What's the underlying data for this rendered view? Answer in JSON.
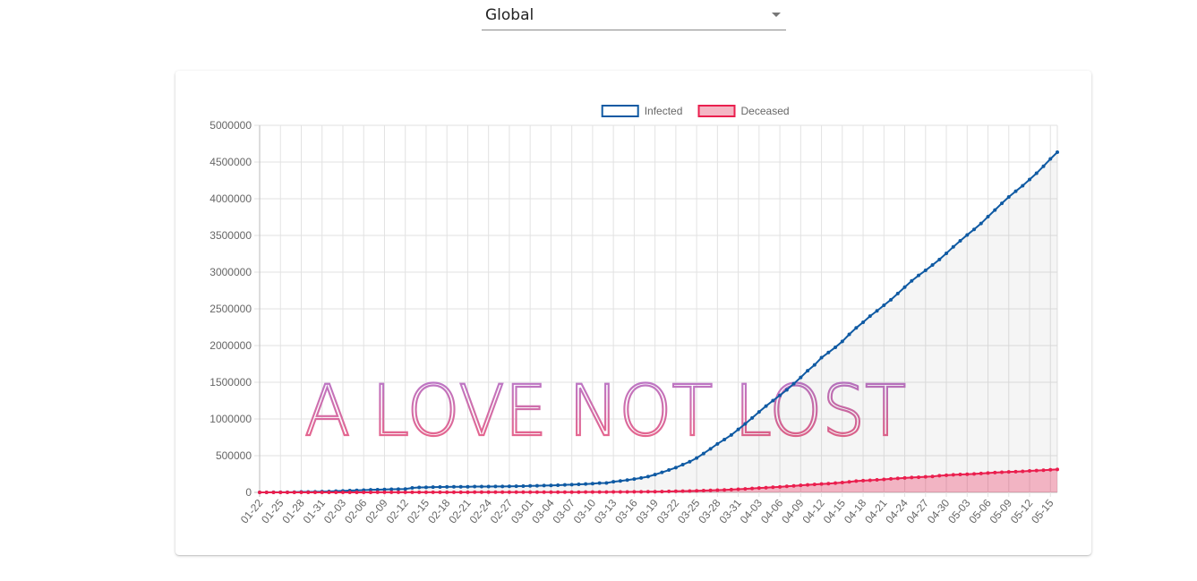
{
  "selector": {
    "value": "Global"
  },
  "chart_data": {
    "type": "line",
    "watermark": "A LOVE NOT LOST",
    "categories": [
      "01-22",
      null,
      null,
      "01-25",
      null,
      null,
      "01-28",
      null,
      null,
      "01-31",
      null,
      null,
      "02-03",
      null,
      null,
      "02-06",
      null,
      null,
      "02-09",
      null,
      null,
      "02-12",
      null,
      null,
      "02-15",
      null,
      null,
      "02-18",
      null,
      null,
      "02-21",
      null,
      null,
      "02-24",
      null,
      null,
      "02-27",
      null,
      null,
      "03-01",
      null,
      null,
      "03-04",
      null,
      null,
      "03-07",
      null,
      null,
      "03-10",
      null,
      null,
      "03-13",
      null,
      null,
      "03-16",
      null,
      null,
      "03-19",
      null,
      null,
      "03-22",
      null,
      null,
      "03-25",
      null,
      null,
      "03-28",
      null,
      null,
      "03-31",
      null,
      null,
      "04-03",
      null,
      null,
      "04-06",
      null,
      null,
      "04-09",
      null,
      null,
      "04-12",
      null,
      null,
      "04-15",
      null,
      null,
      "04-18",
      null,
      null,
      "04-21",
      null,
      null,
      "04-24",
      null,
      null,
      "04-27",
      null,
      null,
      "04-30",
      null,
      null,
      "05-03",
      null,
      null,
      "05-06",
      null,
      null,
      "05-09",
      null,
      null,
      "05-12",
      null,
      null,
      "05-15",
      null
    ],
    "series": [
      {
        "name": "Infected",
        "color": "#0f5aa3",
        "fill": "rgba(0,0,0,0.04)",
        "legend_fill": "#ffffff",
        "values": [
          555,
          654,
          941,
          1434,
          2118,
          2927,
          5578,
          6166,
          8234,
          9927,
          12038,
          16787,
          19881,
          23892,
          27635,
          30794,
          34391,
          37120,
          40150,
          42762,
          44802,
          45221,
          60368,
          66885,
          69030,
          71224,
          73258,
          75136,
          75639,
          76197,
          76819,
          78572,
          78958,
          79561,
          80406,
          81388,
          82746,
          84112,
          86011,
          88369,
          90306,
          92840,
          95120,
          97886,
          101801,
          105847,
          109821,
          113590,
          118620,
          125875,
          128352,
          145205,
          156101,
          167454,
          181574,
          197102,
          214821,
          242570,
          272208,
          304507,
          336953,
          378235,
          418045,
          467653,
          529591,
          593291,
          660706,
          720117,
          782365,
          857487,
          932605,
          1013466,
          1095917,
          1176060,
          1249754,
          1321481,
          1396476,
          1480202,
          1565278,
          1657526,
          1735650,
          1834721,
          1904838,
          1976191,
          2056055,
          2152437,
          2240190,
          2317758,
          2401378,
          2472259,
          2549123,
          2624074,
          2708885,
          2795730,
          2881140,
          2955033,
          3023722,
          3097229,
          3172287,
          3256846,
          3343777,
          3427343,
          3506729,
          3583055,
          3662691,
          3755341,
          3845718,
          3938064,
          4024009,
          4101699,
          4177502,
          4261747,
          4347018,
          4442163,
          4542347,
          4634068
        ]
      },
      {
        "name": "Deceased",
        "color": "#ea1f4e",
        "fill": "rgba(234,31,78,0.3)",
        "legend_fill": "#f4b6c4",
        "values": [
          17,
          18,
          26,
          42,
          56,
          82,
          131,
          133,
          171,
          213,
          259,
          362,
          426,
          492,
          564,
          634,
          719,
          806,
          906,
          1013,
          1113,
          1118,
          1371,
          1523,
          1666,
          1770,
          1868,
          2007,
          2122,
          2247,
          2251,
          2458,
          2469,
          2629,
          2708,
          2770,
          2814,
          2872,
          2941,
          2996,
          3085,
          3160,
          3254,
          3348,
          3460,
          3558,
          3802,
          3988,
          4262,
          4615,
          4720,
          5404,
          5819,
          6440,
          7126,
          7905,
          8733,
          9867,
          11299,
          12973,
          14623,
          16497,
          18615,
          21181,
          23970,
          27198,
          30652,
          33925,
          37582,
          42107,
          46809,
          52983,
          58787,
          64606,
          69374,
          74565,
          81865,
          88338,
          95455,
          102525,
          108502,
          114090,
          119481,
          125983,
          134176,
          143800,
          153821,
          159509,
          165044,
          169985,
          177481,
          184217,
          190858,
          197159,
          202846,
          206544,
          211167,
          217153,
          227638,
          233388,
          238619,
          243813,
          247470,
          251537,
          257239,
          263855,
          269567,
          274898,
          279311,
          282709,
          286330,
          292376,
          297197,
          302418,
          307666,
          311781
        ]
      }
    ],
    "ylim": [
      0,
      5000000
    ],
    "yticks": [
      0,
      500000,
      1000000,
      1500000,
      2000000,
      2500000,
      3000000,
      3500000,
      4000000,
      4500000,
      5000000
    ],
    "grid": true,
    "legend": "top"
  }
}
